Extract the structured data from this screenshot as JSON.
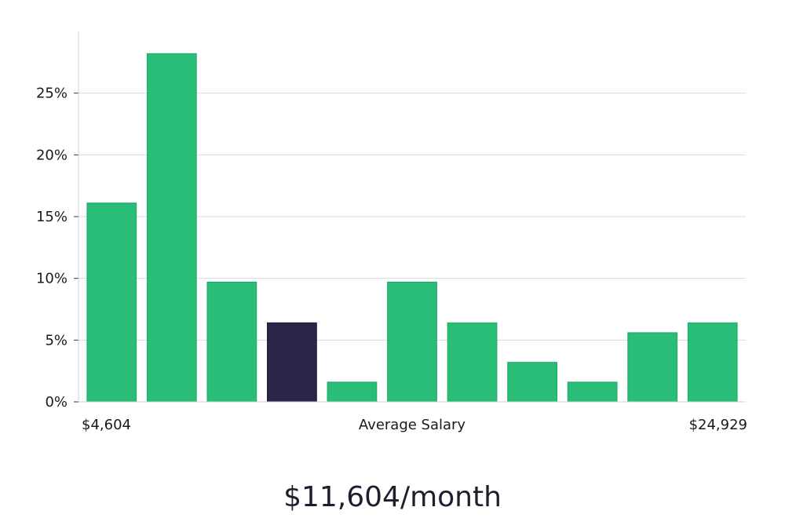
{
  "chart_data": {
    "type": "bar",
    "title": "",
    "xlabel": "Average Salary",
    "ylabel": "",
    "x_min_label": "$4,604",
    "x_max_label": "$24,929",
    "values": [
      16.1,
      28.2,
      9.7,
      6.4,
      1.6,
      9.7,
      6.4,
      3.2,
      1.6,
      5.6,
      6.4
    ],
    "highlight_index": 3,
    "ylim": [
      0,
      30
    ],
    "yticks": [
      0,
      5,
      10,
      15,
      20,
      25
    ],
    "ytick_labels": [
      "0%",
      "5%",
      "10%",
      "15%",
      "20%",
      "25%"
    ],
    "grid": true,
    "colors": {
      "bar": "#2abd77",
      "highlight": "#2a2647",
      "grid": "#d9d9d9",
      "axis": "#d0d0d0"
    }
  },
  "headline": "$11,604/month"
}
